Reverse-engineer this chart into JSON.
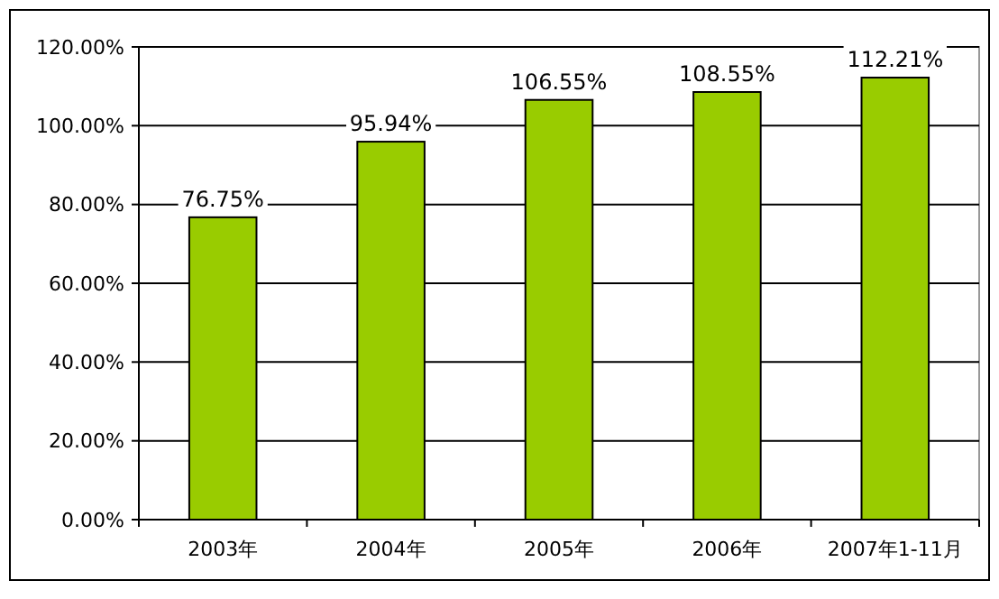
{
  "chart_data": {
    "type": "bar",
    "categories": [
      "2003年",
      "2004年",
      "2005年",
      "2006年",
      "2007年1-11月"
    ],
    "values": [
      76.75,
      95.94,
      106.55,
      108.55,
      112.21
    ],
    "color": "#99cc00",
    "value_labels": [
      "76.75%",
      "95.94%",
      "106.55%",
      "108.55%",
      "112.21%"
    ],
    "ylim": [
      0,
      120
    ],
    "yticks": [
      {
        "value": 0,
        "label": "0.00%"
      },
      {
        "value": 20,
        "label": "20.00%"
      },
      {
        "value": 40,
        "label": "40.00%"
      },
      {
        "value": 60,
        "label": "60.00%"
      },
      {
        "value": 80,
        "label": "80.00%"
      },
      {
        "value": 100,
        "label": "100.00%"
      },
      {
        "value": 120,
        "label": "120.00%"
      }
    ],
    "grid": "y"
  }
}
